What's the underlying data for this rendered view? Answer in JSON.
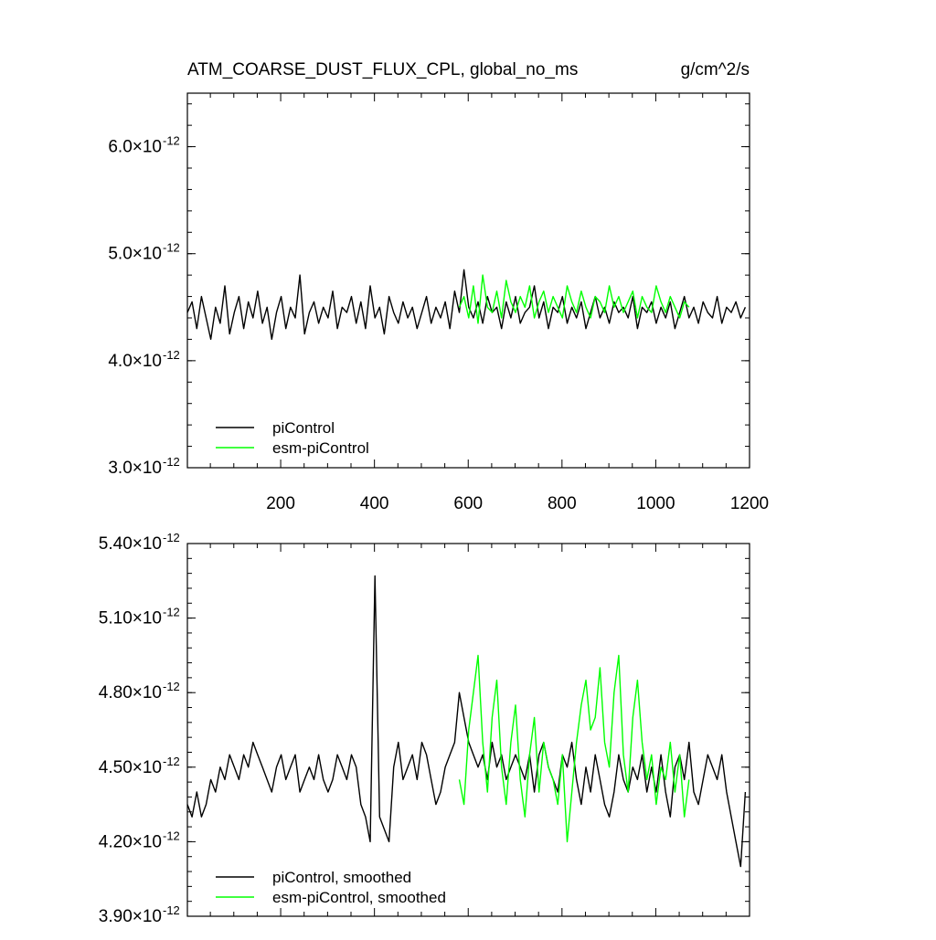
{
  "figure": {
    "title_left": "ATM_COARSE_DUST_FLUX_CPL, global_no_ms",
    "title_right": "g/cm^2/s"
  },
  "chart_data": [
    {
      "id": "top-panel",
      "type": "line",
      "title": "ATM_COARSE_DUST_FLUX_CPL, global_no_ms",
      "units": "g/cm^2/s",
      "xlim": [
        1,
        1200
      ],
      "ylim": [
        3e-12,
        6.5e-12
      ],
      "x_ticks": [
        200,
        400,
        600,
        800,
        1000,
        1200
      ],
      "x_tick_labels": [
        "200",
        "400",
        "600",
        "800",
        "1000",
        "1200"
      ],
      "y_ticks": [
        3e-12,
        4e-12,
        5e-12,
        6e-12
      ],
      "y_tick_mantissas": [
        "3.0",
        "4.0",
        "5.0",
        "6.0"
      ],
      "y_tick_base": "×10",
      "y_tick_exponent": "-12",
      "grid": false,
      "legend_position": "bottom-left",
      "series": [
        {
          "name": "piControl",
          "color": "#000000",
          "x_range": [
            1,
            1200
          ],
          "step": 10,
          "values_e12": [
            4.45,
            4.55,
            4.3,
            4.6,
            4.4,
            4.2,
            4.5,
            4.35,
            4.7,
            4.25,
            4.45,
            4.6,
            4.3,
            4.55,
            4.4,
            4.65,
            4.35,
            4.5,
            4.2,
            4.45,
            4.6,
            4.3,
            4.5,
            4.4,
            4.8,
            4.25,
            4.45,
            4.55,
            4.35,
            4.5,
            4.4,
            4.65,
            4.3,
            4.5,
            4.45,
            4.6,
            4.35,
            4.55,
            4.3,
            4.7,
            4.4,
            4.5,
            4.25,
            4.6,
            4.45,
            4.35,
            4.55,
            4.4,
            4.5,
            4.3,
            4.45,
            4.6,
            4.35,
            4.5,
            4.4,
            4.55,
            4.3,
            4.65,
            4.45,
            4.85,
            4.5,
            4.4,
            4.55,
            4.35,
            4.6,
            4.45,
            4.5,
            4.3,
            4.55,
            4.4,
            4.6,
            4.35,
            4.45,
            4.5,
            4.7,
            4.4,
            4.55,
            4.3,
            4.5,
            4.45,
            4.6,
            4.35,
            4.5,
            4.4,
            4.55,
            4.3,
            4.45,
            4.6,
            4.4,
            4.5,
            4.35,
            4.55,
            4.45,
            4.5,
            4.4,
            4.6,
            4.3,
            4.5,
            4.45,
            4.55,
            4.35,
            4.5,
            4.4,
            4.55,
            4.3,
            4.45,
            4.6,
            4.4,
            4.5,
            4.35,
            4.55,
            4.45,
            4.4,
            4.6,
            4.35,
            4.5,
            4.45,
            4.55,
            4.4,
            4.5
          ]
        },
        {
          "name": "esm-piControl",
          "color": "#00ff00",
          "x_range": [
            581,
            1080
          ],
          "step": 10,
          "values_e12": [
            4.5,
            4.6,
            4.4,
            4.7,
            4.35,
            4.8,
            4.5,
            4.45,
            4.65,
            4.4,
            4.75,
            4.55,
            4.45,
            4.6,
            4.5,
            4.7,
            4.4,
            4.55,
            4.65,
            4.45,
            4.6,
            4.5,
            4.4,
            4.7,
            4.55,
            4.45,
            4.65,
            4.5,
            4.4,
            4.6,
            4.55,
            4.45,
            4.7,
            4.5,
            4.6,
            4.45,
            4.55,
            4.65,
            4.4,
            4.6,
            4.5,
            4.45,
            4.7,
            4.55,
            4.45,
            4.6,
            4.5,
            4.4,
            4.55,
            4.5
          ]
        }
      ],
      "legend": [
        "piControl",
        "esm-piControl"
      ]
    },
    {
      "id": "bottom-panel",
      "type": "line",
      "xlim": [
        1,
        1200
      ],
      "ylim": [
        3.9e-12,
        5.4e-12
      ],
      "x_ticks": [
        200,
        400,
        600,
        800,
        1000,
        1200
      ],
      "y_ticks": [
        3.9e-12,
        4.2e-12,
        4.5e-12,
        4.8e-12,
        5.1e-12,
        5.4e-12
      ],
      "y_tick_mantissas": [
        "3.90",
        "4.20",
        "4.50",
        "4.80",
        "5.10",
        "5.40"
      ],
      "y_tick_base": "×10",
      "y_tick_exponent": "-12",
      "grid": false,
      "legend_position": "bottom-left",
      "series": [
        {
          "name": "piControl, smoothed",
          "color": "#000000",
          "x_range": [
            1,
            1200
          ],
          "step": 10,
          "values_e12": [
            4.35,
            4.3,
            4.4,
            4.3,
            4.35,
            4.45,
            4.4,
            4.5,
            4.45,
            4.55,
            4.5,
            4.45,
            4.55,
            4.5,
            4.6,
            4.55,
            4.5,
            4.45,
            4.4,
            4.5,
            4.55,
            4.45,
            4.5,
            4.55,
            4.4,
            4.45,
            4.5,
            4.45,
            4.55,
            4.45,
            4.4,
            4.45,
            4.55,
            4.5,
            4.45,
            4.55,
            4.5,
            4.35,
            4.3,
            4.2,
            5.27,
            4.3,
            4.25,
            4.2,
            4.5,
            4.6,
            4.45,
            4.5,
            4.55,
            4.45,
            4.6,
            4.55,
            4.45,
            4.35,
            4.4,
            4.5,
            4.55,
            4.6,
            4.8,
            4.7,
            4.6,
            4.55,
            4.5,
            4.55,
            4.45,
            4.6,
            4.5,
            4.55,
            4.45,
            4.5,
            4.55,
            4.5,
            4.45,
            4.55,
            4.4,
            4.55,
            4.6,
            4.5,
            4.45,
            4.4,
            4.55,
            4.5,
            4.6,
            4.45,
            4.35,
            4.5,
            4.4,
            4.55,
            4.45,
            4.35,
            4.3,
            4.4,
            4.55,
            4.45,
            4.4,
            4.5,
            4.45,
            4.55,
            4.4,
            4.5,
            4.4,
            4.55,
            4.4,
            4.3,
            4.5,
            4.55,
            4.45,
            4.6,
            4.4,
            4.35,
            4.45,
            4.55,
            4.5,
            4.45,
            4.55,
            4.4,
            4.3,
            4.2,
            4.1,
            4.4
          ]
        },
        {
          "name": "esm-piControl, smoothed",
          "color": "#00ff00",
          "x_range": [
            581,
            1080
          ],
          "step": 10,
          "values_e12": [
            4.45,
            4.35,
            4.65,
            4.8,
            4.95,
            4.6,
            4.4,
            4.7,
            4.85,
            4.5,
            4.35,
            4.6,
            4.75,
            4.45,
            4.3,
            4.55,
            4.7,
            4.4,
            4.6,
            4.5,
            4.45,
            4.35,
            4.55,
            4.2,
            4.4,
            4.6,
            4.75,
            4.85,
            4.65,
            4.7,
            4.9,
            4.6,
            4.5,
            4.8,
            4.95,
            4.55,
            4.4,
            4.7,
            4.85,
            4.6,
            4.45,
            4.55,
            4.35,
            4.5,
            4.45,
            4.6,
            4.4,
            4.55,
            4.3,
            4.45
          ]
        }
      ],
      "legend": [
        "piControl, smoothed",
        "esm-piControl, smoothed"
      ]
    }
  ]
}
